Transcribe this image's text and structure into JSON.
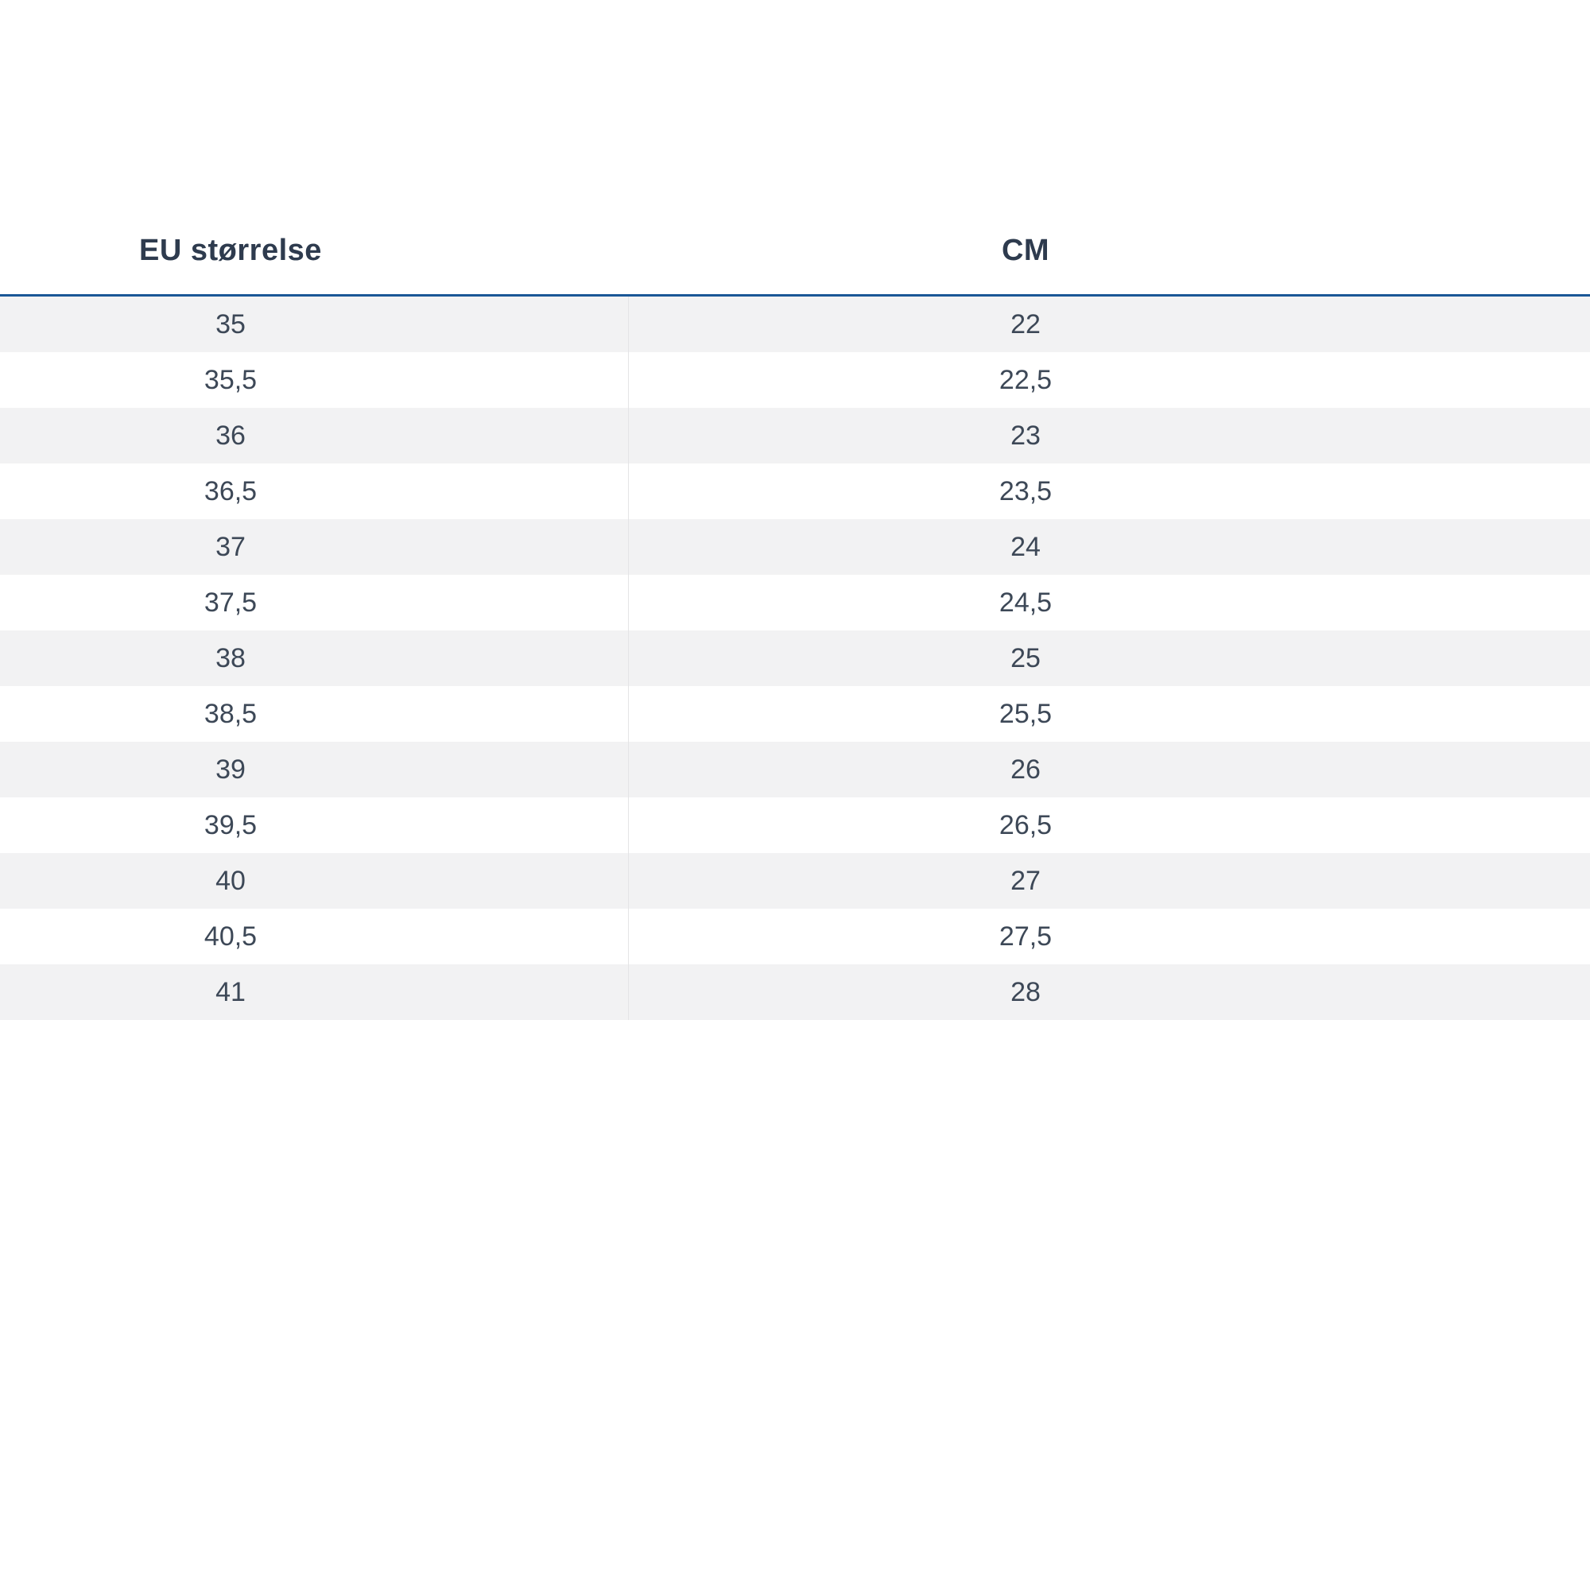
{
  "chart_data": {
    "type": "table",
    "columns": [
      "EU størrelse",
      "CM"
    ],
    "rows": [
      [
        "35",
        "22"
      ],
      [
        "35,5",
        "22,5"
      ],
      [
        "36",
        "23"
      ],
      [
        "36,5",
        "23,5"
      ],
      [
        "37",
        "24"
      ],
      [
        "37,5",
        "24,5"
      ],
      [
        "38",
        "25"
      ],
      [
        "38,5",
        "25,5"
      ],
      [
        "39",
        "26"
      ],
      [
        "39,5",
        "26,5"
      ],
      [
        "40",
        "27"
      ],
      [
        "40,5",
        "27,5"
      ],
      [
        "41",
        "28"
      ]
    ]
  },
  "colors": {
    "header_underline": "#1a5796",
    "row_stripe": "#f2f2f3",
    "column_divider": "#e4e4e6",
    "header_text": "#2e3b4e",
    "cell_text": "#3d4857"
  }
}
